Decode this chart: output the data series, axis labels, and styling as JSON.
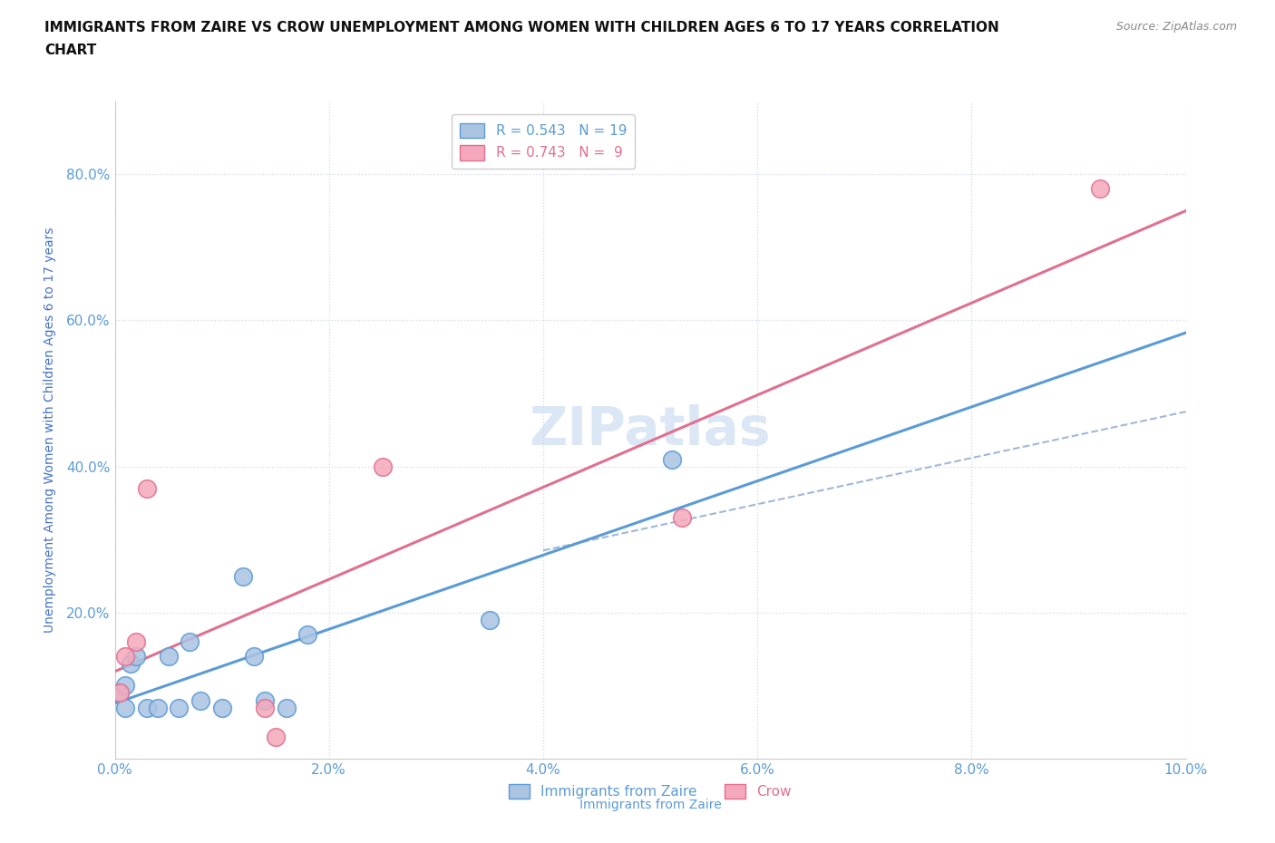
{
  "title": "IMMIGRANTS FROM ZAIRE VS CROW UNEMPLOYMENT AMONG WOMEN WITH CHILDREN AGES 6 TO 17 YEARS CORRELATION\nCHART",
  "source_text": "Source: ZipAtlas.com",
  "xlabel": "Immigrants from Zaire",
  "ylabel": "Unemployment Among Women with Children Ages 6 to 17 years",
  "xlim": [
    0.0,
    0.1
  ],
  "ylim": [
    0.0,
    0.9
  ],
  "xtick_labels": [
    "0.0%",
    "2.0%",
    "4.0%",
    "6.0%",
    "8.0%",
    "10.0%"
  ],
  "xtick_values": [
    0.0,
    0.02,
    0.04,
    0.06,
    0.08,
    0.1
  ],
  "ytick_labels": [
    "20.0%",
    "40.0%",
    "60.0%",
    "80.0%"
  ],
  "ytick_values": [
    0.2,
    0.4,
    0.6,
    0.8
  ],
  "watermark": "ZIPatlas",
  "blue_scatter_x": [
    0.0005,
    0.001,
    0.001,
    0.0015,
    0.002,
    0.003,
    0.004,
    0.005,
    0.006,
    0.007,
    0.008,
    0.01,
    0.012,
    0.013,
    0.014,
    0.016,
    0.018,
    0.035,
    0.052
  ],
  "blue_scatter_y": [
    0.09,
    0.07,
    0.1,
    0.13,
    0.14,
    0.07,
    0.07,
    0.14,
    0.07,
    0.16,
    0.08,
    0.07,
    0.25,
    0.14,
    0.08,
    0.07,
    0.17,
    0.19,
    0.41
  ],
  "pink_scatter_x": [
    0.0005,
    0.001,
    0.002,
    0.003,
    0.014,
    0.015,
    0.025,
    0.053,
    0.092
  ],
  "pink_scatter_y": [
    0.09,
    0.14,
    0.16,
    0.37,
    0.07,
    0.03,
    0.4,
    0.33,
    0.78
  ],
  "blue_color": "#aac4e2",
  "pink_color": "#f5a8bb",
  "blue_line_color": "#5b9bd5",
  "pink_line_color": "#e07090",
  "dashed_line_color": "#a0b8d8",
  "legend_blue_r": "0.543",
  "legend_blue_n": "19",
  "legend_pink_r": "0.743",
  "legend_pink_n": "9",
  "title_fontsize": 11,
  "axis_label_fontsize": 10,
  "tick_fontsize": 11,
  "legend_fontsize": 11,
  "source_fontsize": 9,
  "watermark_fontsize": 42,
  "background_color": "#ffffff",
  "grid_color": "#d0d8e8",
  "ylabel_color": "#4472c4",
  "xlabel_color": "#5b9bd5",
  "ytick_color": "#5b9bd5",
  "xtick_color": "#5b9bd5"
}
